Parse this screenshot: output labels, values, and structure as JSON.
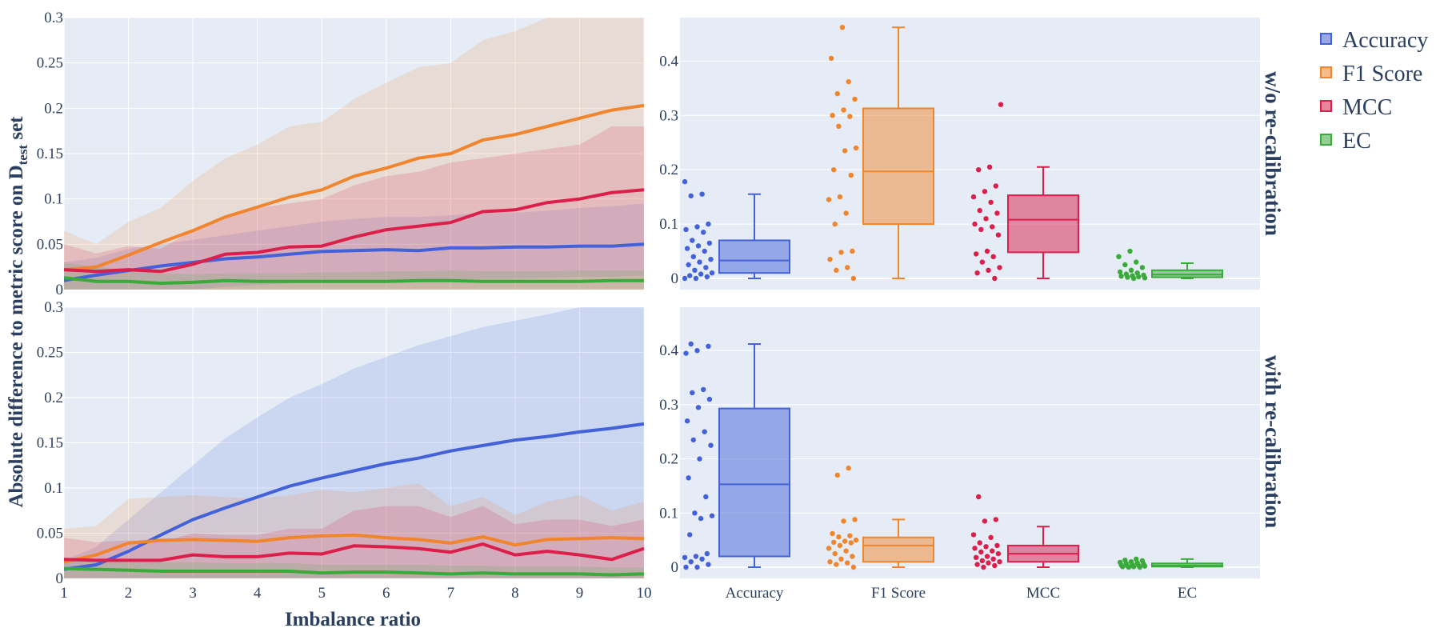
{
  "chart_data": {
    "type": "line+box",
    "ylabel": "Absolute difference to metric score on D",
    "ylabel_sub": "test",
    "ylabel_suffix": " set",
    "xlabel": "Imbalance ratio",
    "x_ticks": [
      "1",
      "2",
      "3",
      "4",
      "5",
      "6",
      "7",
      "8",
      "9",
      "10"
    ],
    "line_y_ticks": [
      "0",
      "0.05",
      "0.1",
      "0.15",
      "0.2",
      "0.25",
      "0.3"
    ],
    "box_y_ticks": [
      "0",
      "0.1",
      "0.2",
      "0.3",
      "0.4"
    ],
    "box_categories": [
      "Accuracy",
      "F1 Score",
      "MCC",
      "EC"
    ],
    "row_labels": [
      "w/o re-calibration",
      "with re-calibration"
    ],
    "legend": [
      {
        "name": "Accuracy",
        "color": "#4361d8"
      },
      {
        "name": "F1 Score",
        "color": "#f0852d"
      },
      {
        "name": "MCC",
        "color": "#dc1e4b"
      },
      {
        "name": "EC",
        "color": "#3aaa3a"
      }
    ],
    "x": [
      1,
      1.5,
      2,
      2.5,
      3,
      3.5,
      4,
      4.5,
      5,
      5.5,
      6,
      6.5,
      7,
      7.5,
      8,
      8.5,
      9,
      9.5,
      10
    ],
    "rows": [
      {
        "label": "w/o re-calibration",
        "lines": [
          {
            "name": "Accuracy",
            "mean": [
              0.01,
              0.016,
              0.021,
              0.026,
              0.03,
              0.034,
              0.036,
              0.039,
              0.042,
              0.043,
              0.044,
              0.043,
              0.046,
              0.046,
              0.047,
              0.047,
              0.048,
              0.048,
              0.05
            ],
            "lo": [
              0,
              0,
              0,
              0,
              0,
              0.003,
              0.005,
              0.007,
              0.008,
              0.009,
              0.01,
              0.01,
              0.011,
              0.012,
              0.012,
              0.013,
              0.014,
              0.014,
              0.015
            ],
            "hi": [
              0.03,
              0.035,
              0.045,
              0.05,
              0.055,
              0.06,
              0.065,
              0.07,
              0.075,
              0.078,
              0.08,
              0.08,
              0.082,
              0.085,
              0.085,
              0.087,
              0.09,
              0.092,
              0.095
            ]
          },
          {
            "name": "F1 Score",
            "mean": [
              0.022,
              0.025,
              0.038,
              0.052,
              0.065,
              0.08,
              0.091,
              0.102,
              0.11,
              0.125,
              0.134,
              0.145,
              0.15,
              0.165,
              0.171,
              0.18,
              0.189,
              0.198,
              0.203
            ],
            "lo": [
              0,
              0,
              0,
              0,
              0,
              0,
              0,
              0,
              0,
              0,
              0,
              0,
              0,
              0,
              0,
              0,
              0,
              0,
              0
            ],
            "hi": [
              0.065,
              0.05,
              0.075,
              0.09,
              0.12,
              0.145,
              0.16,
              0.18,
              0.185,
              0.21,
              0.228,
              0.245,
              0.25,
              0.275,
              0.285,
              0.3,
              0.3,
              0.3,
              0.3
            ]
          },
          {
            "name": "MCC",
            "mean": [
              0.022,
              0.02,
              0.022,
              0.02,
              0.028,
              0.039,
              0.041,
              0.047,
              0.048,
              0.058,
              0.066,
              0.07,
              0.074,
              0.086,
              0.088,
              0.096,
              0.1,
              0.107,
              0.11
            ],
            "lo": [
              0,
              0,
              0,
              0,
              0,
              0,
              0,
              0,
              0,
              0,
              0,
              0,
              0,
              0,
              0,
              0,
              0,
              0,
              0
            ],
            "hi": [
              0.05,
              0.04,
              0.048,
              0.045,
              0.065,
              0.08,
              0.09,
              0.095,
              0.1,
              0.115,
              0.125,
              0.13,
              0.14,
              0.145,
              0.15,
              0.155,
              0.16,
              0.18,
              0.18
            ]
          },
          {
            "name": "EC",
            "mean": [
              0.013,
              0.009,
              0.009,
              0.007,
              0.008,
              0.01,
              0.009,
              0.009,
              0.009,
              0.009,
              0.009,
              0.01,
              0.01,
              0.009,
              0.009,
              0.009,
              0.009,
              0.01,
              0.01
            ],
            "lo": [
              0,
              0,
              0,
              0,
              0,
              0,
              0,
              0,
              0,
              0,
              0,
              0,
              0,
              0,
              0,
              0,
              0,
              0,
              0
            ],
            "hi": [
              0.03,
              0.025,
              0.022,
              0.018,
              0.017,
              0.018,
              0.018,
              0.018,
              0.019,
              0.019,
              0.02,
              0.02,
              0.021,
              0.02,
              0.02,
              0.02,
              0.021,
              0.021,
              0.021
            ]
          }
        ],
        "boxes": [
          {
            "name": "Accuracy",
            "min": 0,
            "q1": 0.01,
            "median": 0.033,
            "q3": 0.07,
            "max": 0.155,
            "points": [
              0.178,
              0.155,
              0.152,
              0.1,
              0.095,
              0.09,
              0.085,
              0.07,
              0.065,
              0.06,
              0.055,
              0.05,
              0.04,
              0.035,
              0.03,
              0.025,
              0.02,
              0.015,
              0.01,
              0.008,
              0.005,
              0.003,
              0,
              0
            ]
          },
          {
            "name": "F1 Score",
            "min": 0,
            "q1": 0.1,
            "median": 0.197,
            "q3": 0.313,
            "max": 0.462,
            "points": [
              0.462,
              0.405,
              0.362,
              0.34,
              0.33,
              0.31,
              0.3,
              0.298,
              0.28,
              0.24,
              0.235,
              0.2,
              0.19,
              0.15,
              0.145,
              0.12,
              0.1,
              0.05,
              0.048,
              0.035,
              0.02,
              0.015,
              0
            ]
          },
          {
            "name": "MCC",
            "min": 0,
            "q1": 0.048,
            "median": 0.108,
            "q3": 0.153,
            "max": 0.205,
            "points": [
              0.32,
              0.205,
              0.2,
              0.17,
              0.16,
              0.15,
              0.14,
              0.125,
              0.12,
              0.11,
              0.1,
              0.095,
              0.09,
              0.08,
              0.05,
              0.045,
              0.04,
              0.03,
              0.02,
              0.015,
              0.01,
              0
            ]
          },
          {
            "name": "EC",
            "min": 0,
            "q1": 0.002,
            "median": 0.007,
            "q3": 0.015,
            "max": 0.028,
            "points": [
              0.05,
              0.04,
              0.03,
              0.025,
              0.02,
              0.015,
              0.012,
              0.01,
              0.008,
              0.006,
              0.005,
              0.004,
              0.003,
              0.002,
              0.001,
              0
            ]
          }
        ]
      },
      {
        "label": "with re-calibration",
        "lines": [
          {
            "name": "Accuracy",
            "mean": [
              0.01,
              0.015,
              0.03,
              0.048,
              0.065,
              0.078,
              0.09,
              0.102,
              0.111,
              0.119,
              0.127,
              0.133,
              0.141,
              0.147,
              0.153,
              0.157,
              0.162,
              0.166,
              0.171
            ],
            "lo": [
              0,
              0,
              0,
              0,
              0,
              0,
              0,
              0,
              0,
              0,
              0,
              0,
              0,
              0,
              0,
              0,
              0,
              0,
              0
            ],
            "hi": [
              0.02,
              0.035,
              0.065,
              0.095,
              0.125,
              0.155,
              0.178,
              0.2,
              0.215,
              0.232,
              0.245,
              0.258,
              0.268,
              0.278,
              0.285,
              0.292,
              0.3,
              0.3,
              0.3
            ]
          },
          {
            "name": "F1 Score",
            "mean": [
              0.018,
              0.026,
              0.039,
              0.042,
              0.043,
              0.042,
              0.041,
              0.045,
              0.047,
              0.048,
              0.045,
              0.043,
              0.039,
              0.046,
              0.037,
              0.043,
              0.044,
              0.045,
              0.044
            ],
            "lo": [
              0,
              0,
              0,
              0,
              0,
              0,
              0,
              0,
              0,
              0,
              0,
              0,
              0,
              0,
              0,
              0,
              0,
              0,
              0
            ],
            "hi": [
              0.055,
              0.058,
              0.088,
              0.09,
              0.092,
              0.09,
              0.088,
              0.092,
              0.098,
              0.095,
              0.1,
              0.105,
              0.08,
              0.09,
              0.07,
              0.085,
              0.092,
              0.075,
              0.085
            ]
          },
          {
            "name": "MCC",
            "mean": [
              0.021,
              0.02,
              0.02,
              0.02,
              0.026,
              0.024,
              0.024,
              0.028,
              0.027,
              0.036,
              0.035,
              0.033,
              0.029,
              0.038,
              0.026,
              0.03,
              0.026,
              0.021,
              0.033
            ],
            "lo": [
              0,
              0,
              0,
              0,
              0,
              0,
              0,
              0,
              0,
              0,
              0,
              0,
              0,
              0,
              0,
              0,
              0,
              0,
              0
            ],
            "hi": [
              0.045,
              0.04,
              0.042,
              0.04,
              0.05,
              0.048,
              0.048,
              0.055,
              0.055,
              0.075,
              0.08,
              0.08,
              0.068,
              0.08,
              0.06,
              0.065,
              0.065,
              0.058,
              0.065
            ]
          },
          {
            "name": "EC",
            "mean": [
              0.011,
              0.01,
              0.009,
              0.008,
              0.008,
              0.008,
              0.008,
              0.008,
              0.006,
              0.007,
              0.007,
              0.006,
              0.005,
              0.006,
              0.005,
              0.005,
              0.005,
              0.004,
              0.005
            ],
            "lo": [
              0,
              0,
              0,
              0,
              0,
              0,
              0,
              0,
              0,
              0,
              0,
              0,
              0,
              0,
              0,
              0,
              0,
              0,
              0
            ],
            "hi": [
              0.022,
              0.02,
              0.018,
              0.018,
              0.018,
              0.017,
              0.017,
              0.017,
              0.015,
              0.015,
              0.015,
              0.015,
              0.014,
              0.014,
              0.013,
              0.013,
              0.013,
              0.012,
              0.012
            ]
          }
        ],
        "boxes": [
          {
            "name": "Accuracy",
            "min": 0,
            "q1": 0.02,
            "median": 0.153,
            "q3": 0.293,
            "max": 0.412,
            "points": [
              0.412,
              0.408,
              0.4,
              0.395,
              0.328,
              0.322,
              0.31,
              0.295,
              0.27,
              0.25,
              0.235,
              0.225,
              0.2,
              0.165,
              0.13,
              0.1,
              0.095,
              0.09,
              0.06,
              0.025,
              0.02,
              0.018,
              0.015,
              0.01,
              0.005,
              0,
              0
            ]
          },
          {
            "name": "F1 Score",
            "min": 0,
            "q1": 0.01,
            "median": 0.04,
            "q3": 0.055,
            "max": 0.088,
            "points": [
              0.183,
              0.17,
              0.088,
              0.085,
              0.062,
              0.058,
              0.056,
              0.05,
              0.048,
              0.046,
              0.045,
              0.04,
              0.035,
              0.03,
              0.025,
              0.02,
              0.015,
              0.01,
              0.008,
              0.005,
              0
            ]
          },
          {
            "name": "MCC",
            "min": 0,
            "q1": 0.01,
            "median": 0.025,
            "q3": 0.04,
            "max": 0.075,
            "points": [
              0.13,
              0.088,
              0.085,
              0.06,
              0.055,
              0.045,
              0.04,
              0.038,
              0.035,
              0.03,
              0.028,
              0.025,
              0.02,
              0.018,
              0.015,
              0.012,
              0.01,
              0.008,
              0.005,
              0.003,
              0
            ]
          },
          {
            "name": "EC",
            "min": 0,
            "q1": 0.001,
            "median": 0.003,
            "q3": 0.007,
            "max": 0.015,
            "points": [
              0.015,
              0.013,
              0.012,
              0.01,
              0.009,
              0.008,
              0.007,
              0.006,
              0.005,
              0.004,
              0.003,
              0.002,
              0.002,
              0.001,
              0.001,
              0,
              0
            ]
          }
        ]
      }
    ]
  }
}
